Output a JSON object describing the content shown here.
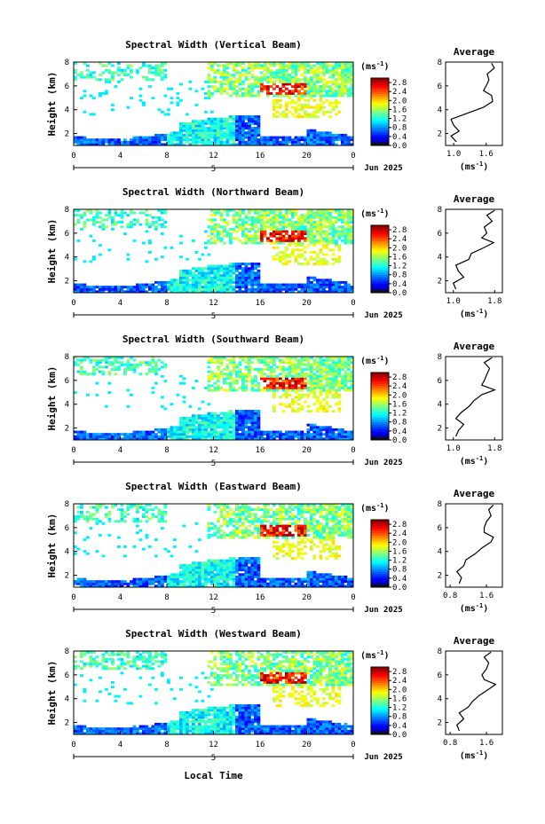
{
  "figure": {
    "xlabel": "Local Time",
    "date_label": "Jun 2025",
    "day_label": "5",
    "colorbar_unit": "(ms",
    "colorbar_exp": "-1",
    "avg_title": "Average",
    "avg_xlabel": "(ms",
    "avg_xlabel_exp": "-1"
  },
  "chart_data": [
    {
      "type": "heatmap",
      "title": "Spectral Width (Vertical Beam)",
      "ylabel": "Height (km)",
      "x_ticks": [
        "0",
        "4",
        "8",
        "12",
        "16",
        "20",
        "0"
      ],
      "y_ticks": [
        "2",
        "4",
        "6",
        "8"
      ],
      "xlim": [
        0,
        24
      ],
      "ylim": [
        1,
        8
      ],
      "colorbar": {
        "ticks": [
          "0.0",
          "0.4",
          "0.8",
          "1.2",
          "1.6",
          "2.0",
          "2.4",
          "2.8"
        ],
        "range": [
          0.0,
          3.0
        ]
      },
      "average_profile": {
        "x_ticks": [
          "1.0",
          "1.6"
        ],
        "xlim": [
          0.85,
          1.9
        ],
        "y_ticks": [
          "2",
          "4",
          "6",
          "8"
        ],
        "heights": [
          1.3,
          1.8,
          2.2,
          2.7,
          3.2,
          3.7,
          4.2,
          4.7,
          5.2,
          5.6,
          6.0,
          6.5,
          7.0,
          7.5,
          7.9
        ],
        "values": [
          1.05,
          0.95,
          1.1,
          1.0,
          0.95,
          1.25,
          1.55,
          1.72,
          1.7,
          1.55,
          1.6,
          1.65,
          1.62,
          1.75,
          1.7
        ]
      }
    },
    {
      "type": "heatmap",
      "title": "Spectral Width (Northward Beam)",
      "ylabel": "Height (km)",
      "x_ticks": [
        "0",
        "4",
        "8",
        "12",
        "16",
        "20",
        "0"
      ],
      "y_ticks": [
        "2",
        "4",
        "6",
        "8"
      ],
      "xlim": [
        0,
        24
      ],
      "ylim": [
        1,
        8
      ],
      "colorbar": {
        "ticks": [
          "0.0",
          "0.4",
          "0.8",
          "1.2",
          "1.6",
          "2.0",
          "2.4",
          "2.8"
        ],
        "range": [
          0.0,
          3.0
        ]
      },
      "average_profile": {
        "x_ticks": [
          "1.0",
          "1.8"
        ],
        "xlim": [
          0.85,
          1.95
        ],
        "y_ticks": [
          "2",
          "4",
          "6",
          "8"
        ],
        "heights": [
          1.3,
          1.8,
          2.3,
          2.8,
          3.3,
          3.8,
          4.3,
          4.8,
          5.2,
          5.6,
          6.0,
          6.5,
          7.0,
          7.5,
          7.9
        ],
        "values": [
          1.05,
          1.0,
          1.2,
          1.1,
          1.05,
          1.3,
          1.35,
          1.6,
          1.78,
          1.55,
          1.65,
          1.6,
          1.75,
          1.65,
          1.8
        ]
      }
    },
    {
      "type": "heatmap",
      "title": "Spectral Width (Southward Beam)",
      "ylabel": "Height (km)",
      "x_ticks": [
        "0",
        "4",
        "8",
        "12",
        "16",
        "20",
        "0"
      ],
      "y_ticks": [
        "2",
        "4",
        "6",
        "8"
      ],
      "xlim": [
        0,
        24
      ],
      "ylim": [
        1,
        8
      ],
      "colorbar": {
        "ticks": [
          "0.0",
          "0.4",
          "0.8",
          "1.2",
          "1.6",
          "2.0",
          "2.4",
          "2.8"
        ],
        "range": [
          0.0,
          3.0
        ]
      },
      "average_profile": {
        "x_ticks": [
          "1.0",
          "1.8"
        ],
        "xlim": [
          0.85,
          1.95
        ],
        "y_ticks": [
          "2",
          "4",
          "6",
          "8"
        ],
        "heights": [
          1.3,
          1.8,
          2.3,
          2.8,
          3.3,
          3.8,
          4.3,
          4.8,
          5.2,
          5.6,
          6.0,
          6.5,
          7.0,
          7.5,
          7.9
        ],
        "values": [
          1.05,
          1.1,
          1.2,
          1.05,
          1.15,
          1.3,
          1.4,
          1.55,
          1.8,
          1.55,
          1.6,
          1.65,
          1.7,
          1.6,
          1.75
        ]
      }
    },
    {
      "type": "heatmap",
      "title": "Spectral Width (Eastward Beam)",
      "ylabel": "Height (km)",
      "x_ticks": [
        "0",
        "4",
        "8",
        "12",
        "16",
        "20",
        "0"
      ],
      "y_ticks": [
        "2",
        "4",
        "6",
        "8"
      ],
      "xlim": [
        0,
        24
      ],
      "ylim": [
        1,
        8
      ],
      "colorbar": {
        "ticks": [
          "0.0",
          "0.4",
          "0.8",
          "1.2",
          "1.6",
          "2.0",
          "2.4",
          "2.8"
        ],
        "range": [
          0.0,
          3.0
        ]
      },
      "average_profile": {
        "x_ticks": [
          "0.8",
          "1.6"
        ],
        "xlim": [
          0.7,
          1.95
        ],
        "y_ticks": [
          "2",
          "4",
          "6",
          "8"
        ],
        "heights": [
          1.3,
          1.8,
          2.3,
          2.8,
          3.3,
          3.8,
          4.3,
          4.8,
          5.2,
          5.6,
          6.0,
          6.5,
          7.0,
          7.5,
          7.9
        ],
        "values": [
          1.0,
          1.05,
          0.95,
          1.1,
          1.15,
          1.35,
          1.5,
          1.7,
          1.75,
          1.55,
          1.55,
          1.6,
          1.7,
          1.65,
          1.75
        ]
      }
    },
    {
      "type": "heatmap",
      "title": "Spectral Width (Westward Beam)",
      "ylabel": "Height (km)",
      "x_ticks": [
        "0",
        "4",
        "8",
        "12",
        "16",
        "20",
        "0"
      ],
      "y_ticks": [
        "2",
        "4",
        "6",
        "8"
      ],
      "xlim": [
        0,
        24
      ],
      "ylim": [
        1,
        8
      ],
      "colorbar": {
        "ticks": [
          "0.0",
          "0.4",
          "0.8",
          "1.2",
          "1.6",
          "2.0",
          "2.4",
          "2.8"
        ],
        "range": [
          0.0,
          3.0
        ]
      },
      "average_profile": {
        "x_ticks": [
          "0.8",
          "1.6"
        ],
        "xlim": [
          0.7,
          1.95
        ],
        "y_ticks": [
          "2",
          "4",
          "6",
          "8"
        ],
        "heights": [
          1.3,
          1.8,
          2.3,
          2.8,
          3.3,
          3.8,
          4.3,
          4.8,
          5.2,
          5.6,
          6.0,
          6.5,
          7.0,
          7.5,
          7.9
        ],
        "values": [
          1.0,
          0.95,
          1.1,
          1.0,
          1.2,
          1.3,
          1.45,
          1.65,
          1.8,
          1.55,
          1.5,
          1.6,
          1.65,
          1.55,
          1.7
        ]
      }
    }
  ]
}
